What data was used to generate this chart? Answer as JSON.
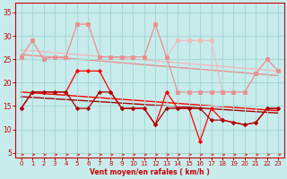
{
  "background_color": "#c8ecec",
  "grid_color": "#a8d8d8",
  "xlabel": "Vent moyen/en rafales ( km/h )",
  "xlabel_color": "#cc0000",
  "tick_color": "#cc0000",
  "yticks": [
    5,
    10,
    15,
    20,
    25,
    30,
    35
  ],
  "xlim": [
    -0.5,
    23.5
  ],
  "ylim": [
    4,
    37
  ],
  "x": [
    0,
    1,
    2,
    3,
    4,
    5,
    6,
    7,
    8,
    9,
    10,
    11,
    12,
    13,
    14,
    15,
    16,
    17,
    18,
    19,
    20,
    21,
    22,
    23
  ],
  "line_pink_upper": [
    25.5,
    29.0,
    25.0,
    25.5,
    25.5,
    32.5,
    32.5,
    25.5,
    25.5,
    25.5,
    25.5,
    25.5,
    32.5,
    25.5,
    29.0,
    29.0,
    29.0,
    29.0,
    18.0,
    18.0,
    18.0,
    22.0,
    25.0,
    22.5
  ],
  "line_pink_lower": [
    25.5,
    29.0,
    25.0,
    25.5,
    25.5,
    32.5,
    32.5,
    25.5,
    25.5,
    25.5,
    25.5,
    25.5,
    32.5,
    25.5,
    18.0,
    18.0,
    18.0,
    18.0,
    18.0,
    18.0,
    18.0,
    22.0,
    25.0,
    22.5
  ],
  "line_red_upper": [
    14.5,
    18.0,
    18.0,
    18.0,
    18.0,
    22.5,
    22.5,
    22.5,
    18.0,
    14.5,
    14.5,
    14.5,
    11.0,
    18.0,
    14.5,
    14.5,
    7.5,
    14.5,
    12.0,
    11.5,
    11.0,
    11.5,
    14.5,
    14.5
  ],
  "line_red_lower": [
    14.5,
    18.0,
    18.0,
    18.0,
    18.0,
    14.5,
    14.5,
    18.0,
    18.0,
    14.5,
    14.5,
    14.5,
    11.0,
    14.5,
    14.5,
    14.5,
    14.5,
    12.0,
    12.0,
    11.5,
    11.0,
    11.5,
    14.5,
    14.5
  ],
  "trend_pink_y0": 27.0,
  "trend_pink_y1": 22.5,
  "trend_pink2_y0": 26.0,
  "trend_pink2_y1": 21.5,
  "trend_red_y0": 18.0,
  "trend_red_y1": 14.0,
  "trend_red2_y0": 17.0,
  "trend_red2_y1": 13.5,
  "color_pink_light": "#f4b8b8",
  "color_pink_dark": "#e89090",
  "color_red_bright": "#ff0000",
  "color_red_dark": "#aa0000"
}
